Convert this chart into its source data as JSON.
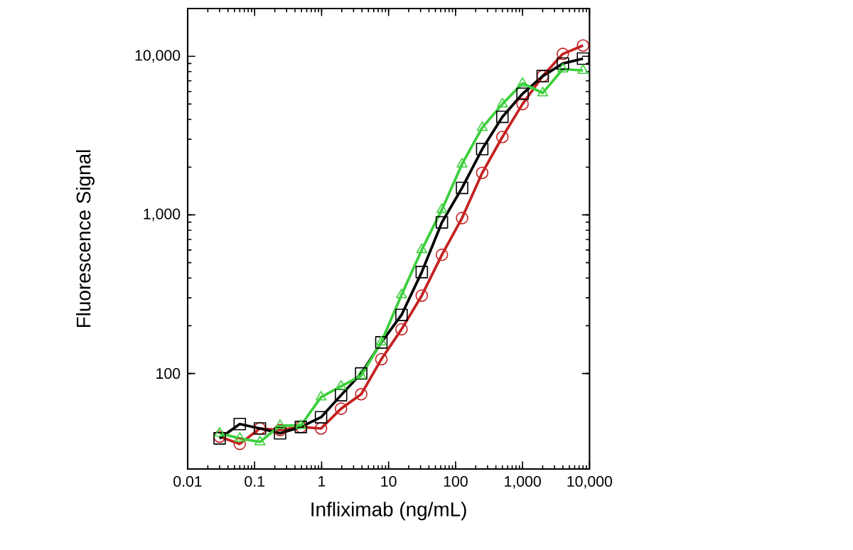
{
  "chart_data": {
    "type": "line",
    "xlabel": "Infliximab (ng/mL)",
    "ylabel": "Fluorescence Signal",
    "log": "xy",
    "line_style": "solid",
    "x": [
      0.03,
      0.06,
      0.12,
      0.24,
      0.49,
      0.98,
      1.95,
      3.9,
      7.8,
      15.6,
      31.3,
      62.5,
      125,
      250,
      500,
      1000,
      2000,
      4000,
      8000
    ],
    "series": [
      {
        "color": "#c42020",
        "marker": "circle",
        "values": [
          40,
          36,
          45,
          44,
          46,
          45,
          60,
          74,
          123,
          190,
          310,
          560,
          955,
          1840,
          3100,
          5000,
          7500,
          10350,
          11700
        ]
      },
      {
        "color": "#000000",
        "marker": "square",
        "values": [
          39,
          48,
          45,
          42,
          46,
          53,
          73,
          100,
          157,
          234,
          436,
          897,
          1480,
          2600,
          4150,
          5800,
          7500,
          9000,
          9660
        ]
      },
      {
        "color": "#3ccf3c",
        "marker": "triangle",
        "values": [
          42,
          39,
          37,
          47,
          47,
          71,
          83,
          97,
          158,
          313,
          603,
          1080,
          2090,
          3550,
          5000,
          6750,
          5870,
          8300,
          8130
        ]
      }
    ],
    "xlim": [
      0.01,
      10000
    ],
    "ylim": [
      25,
      20000
    ],
    "xticks": [
      0.01,
      0.1,
      1,
      10,
      100,
      {
        "value": 1000,
        "label": "1,000"
      },
      {
        "value": 10000,
        "label": "10,000"
      }
    ],
    "yticks": [
      100,
      {
        "value": 1000,
        "label": "1,000"
      },
      {
        "value": 10000,
        "label": "10,000"
      }
    ]
  }
}
